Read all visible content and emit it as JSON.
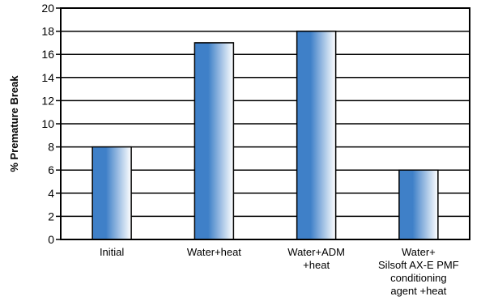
{
  "chart_data": {
    "type": "bar",
    "title": "",
    "xlabel": "",
    "ylabel": "% Premature Break",
    "ylim": [
      0,
      20
    ],
    "yticks": [
      0,
      2,
      4,
      6,
      8,
      10,
      12,
      14,
      16,
      18,
      20
    ],
    "grid": true,
    "categories": [
      [
        "Initial"
      ],
      [
        "Water+heat"
      ],
      [
        "Water+ADM",
        "+heat"
      ],
      [
        "Water+",
        "Silsoft AX-E PMF",
        "conditioning",
        "agent +heat"
      ]
    ],
    "values": [
      8,
      17,
      18,
      6
    ]
  },
  "colors": {
    "bar_dark": "#3f80c8",
    "bar_light": "#ffffff",
    "axis": "#000000",
    "grid": "#000000"
  }
}
